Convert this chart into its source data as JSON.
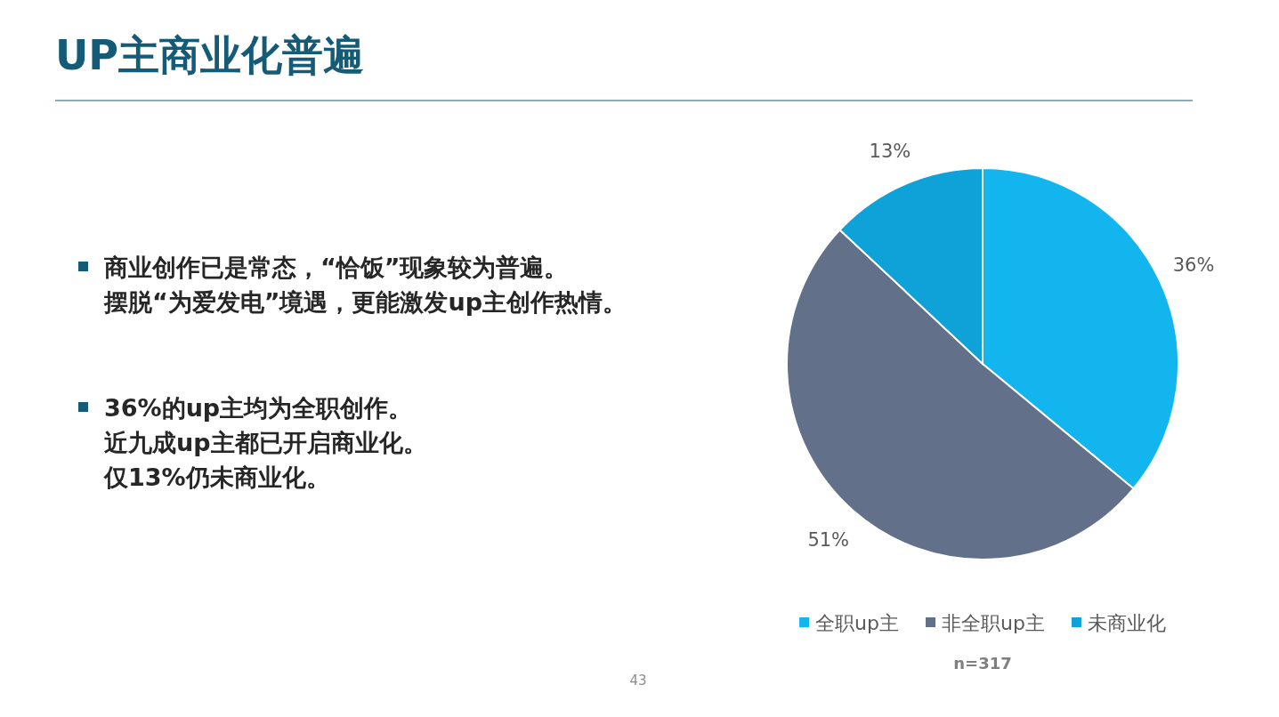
{
  "chart_data": {
    "type": "pie",
    "title": "UP主商业化普遍",
    "categories": [
      "全职up主",
      "非全职up主",
      "未商业化"
    ],
    "values": [
      36,
      51,
      13
    ],
    "colors": [
      "#13b5ef",
      "#637089",
      "#0ea2d8"
    ],
    "value_labels": [
      "36%",
      "51%",
      "13%"
    ],
    "legend": "bottom",
    "annotations": [
      "商业创作已是常态，“恰饭”现象较为普遍。",
      "摆脱“为爱发电”境遇，更能激发up主创作热情。",
      "36%的up主均为全职创作。",
      "近九成up主都已开启商业化。",
      "仅13%仍未商业化。",
      "n=317",
      "43"
    ]
  }
}
